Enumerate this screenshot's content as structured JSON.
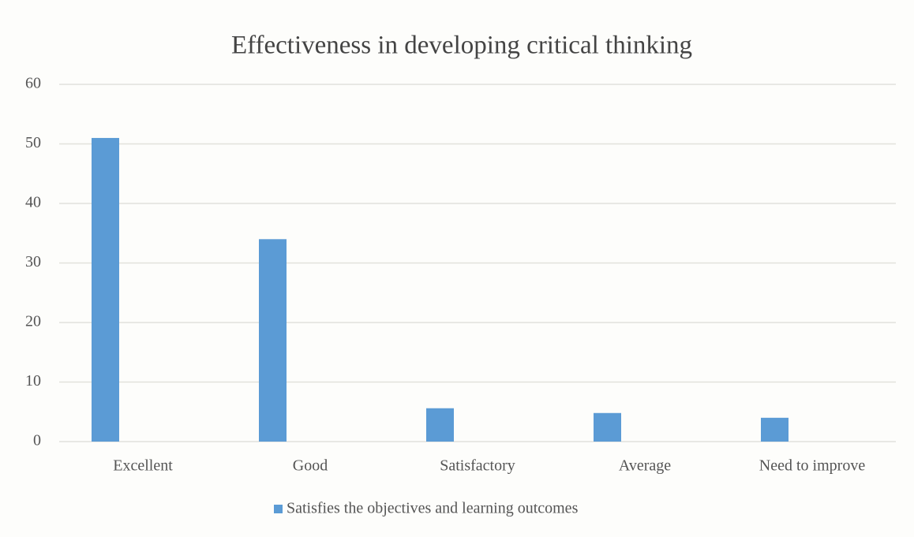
{
  "chart_data": {
    "type": "bar",
    "title": "Effectiveness in developing critical thinking",
    "categories": [
      "Excellent",
      "Good",
      "Satisfactory",
      "Average",
      "Need to improve"
    ],
    "series": [
      {
        "name": "Satisfies the objectives and learning outcomes",
        "color": "#5b9bd5",
        "values": [
          51,
          34,
          5.6,
          4.8,
          4
        ]
      }
    ],
    "ylim": [
      0,
      60
    ],
    "yticks": [
      0,
      10,
      20,
      30,
      40,
      50,
      60
    ],
    "grid": true,
    "legend": "bottom"
  }
}
